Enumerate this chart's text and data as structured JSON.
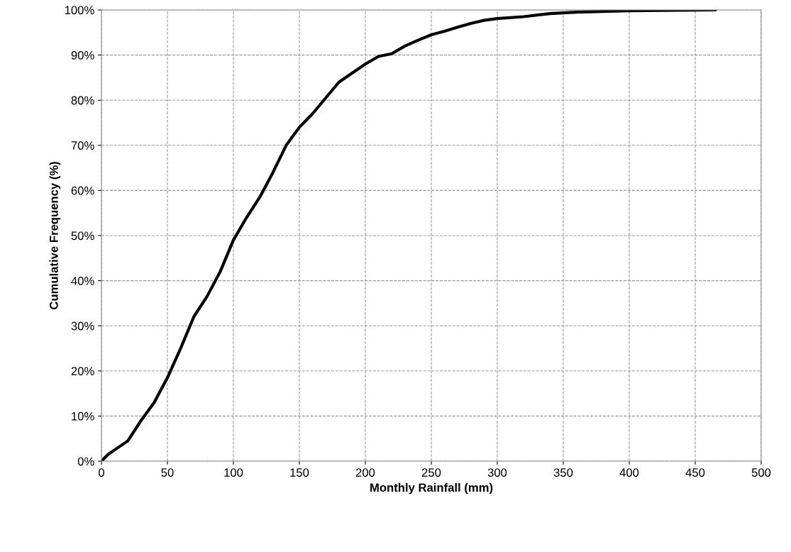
{
  "chart_data": {
    "type": "line",
    "xlabel": "Monthly Rainfall (mm)",
    "ylabel": "Cumulative Frequency (%)",
    "x": [
      0,
      5,
      10,
      20,
      30,
      40,
      50,
      60,
      70,
      80,
      90,
      100,
      110,
      120,
      130,
      140,
      150,
      160,
      170,
      180,
      190,
      200,
      210,
      220,
      230,
      240,
      250,
      260,
      270,
      280,
      290,
      300,
      320,
      340,
      360,
      400,
      465
    ],
    "series": [
      {
        "color": "#000000",
        "values": [
          0,
          1.5,
          2.5,
          4.5,
          9,
          13,
          18.5,
          25,
          32,
          36.5,
          42,
          49,
          54,
          58.5,
          64,
          70,
          74,
          77,
          80.5,
          84,
          86,
          88,
          89.7,
          90.3,
          92,
          93.3,
          94.5,
          95.3,
          96.2,
          97,
          97.7,
          98.1,
          98.5,
          99.2,
          99.5,
          99.8,
          100
        ]
      }
    ],
    "xlim": [
      0,
      500
    ],
    "xticks": [
      0,
      50,
      100,
      150,
      200,
      250,
      300,
      350,
      400,
      450,
      500
    ],
    "ylim": [
      0,
      100
    ],
    "yticks": [
      {
        "value": 0,
        "label": "0%"
      },
      {
        "value": 10,
        "label": "10%"
      },
      {
        "value": 20,
        "label": "20%"
      },
      {
        "value": 30,
        "label": "30%"
      },
      {
        "value": 40,
        "label": "40%"
      },
      {
        "value": 50,
        "label": "50%"
      },
      {
        "value": 60,
        "label": "60%"
      },
      {
        "value": 70,
        "label": "70%"
      },
      {
        "value": 80,
        "label": "80%"
      },
      {
        "value": 90,
        "label": "90%"
      },
      {
        "value": 100,
        "label": "100%"
      }
    ],
    "grid": true,
    "legend": false,
    "marker": "none",
    "line_style": "solid"
  }
}
